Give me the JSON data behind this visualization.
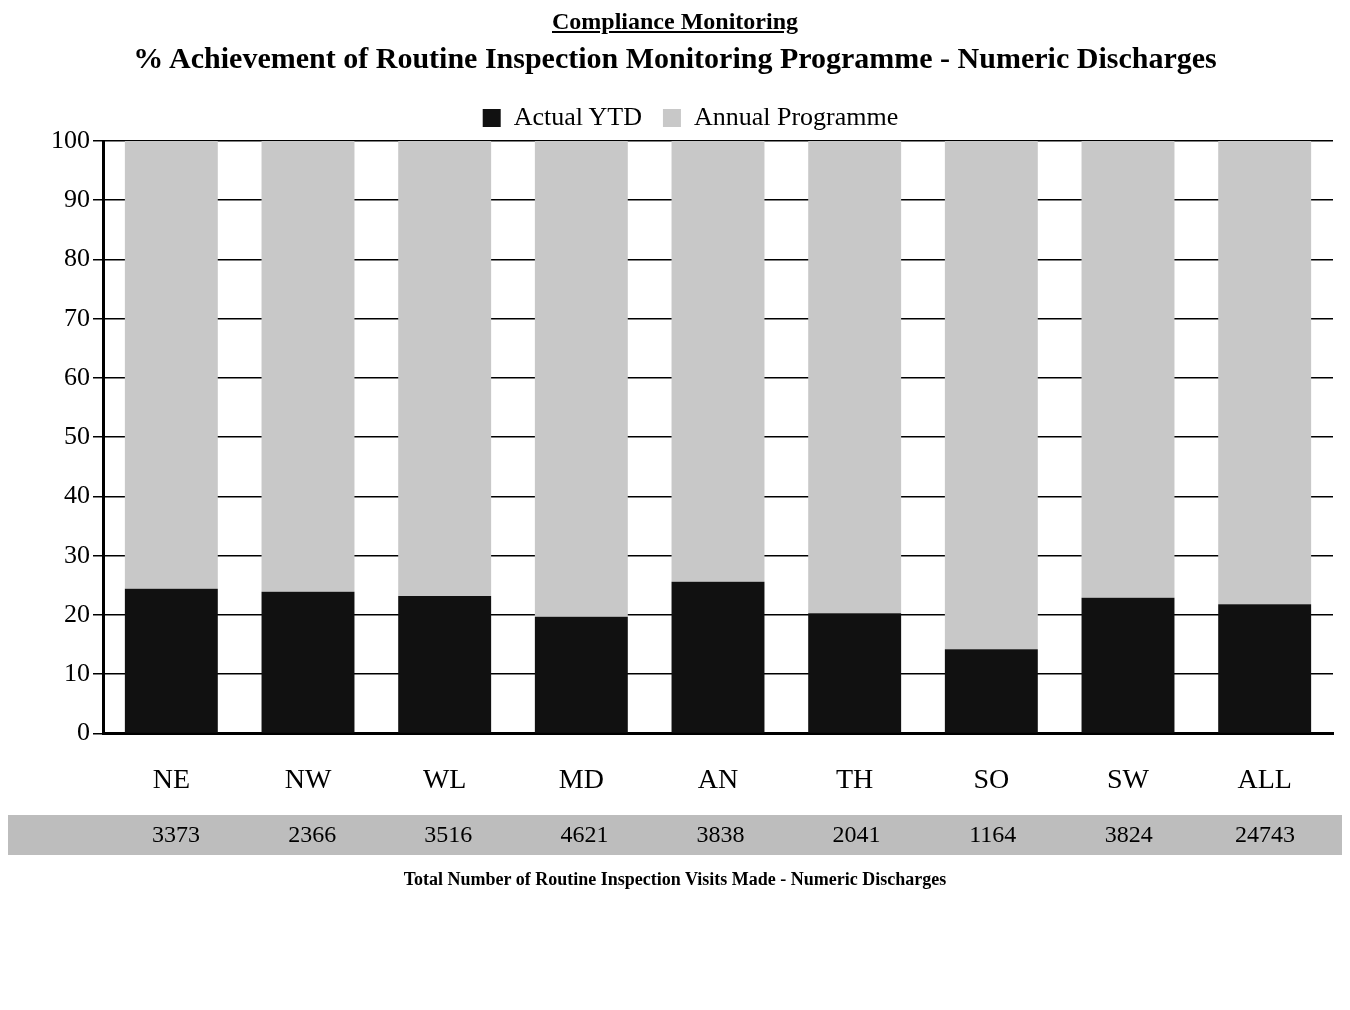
{
  "chart_data": {
    "type": "bar",
    "title": "Compliance Monitoring",
    "subtitle": "% Achievement of Routine Inspection Monitoring Programme - Numeric Discharges",
    "categories": [
      "NE",
      "NW",
      "WL",
      "MD",
      "AN",
      "TH",
      "SO",
      "SW",
      "ALL"
    ],
    "stacked": true,
    "series": [
      {
        "name": "Actual YTD",
        "color": "#111111",
        "values": [
          24.4,
          23.9,
          23.2,
          19.7,
          25.6,
          20.3,
          14.2,
          22.9,
          21.8
        ]
      },
      {
        "name": "Annual Programme",
        "color": "#c8c8c8",
        "values": [
          75.6,
          76.1,
          76.8,
          80.3,
          74.4,
          79.7,
          85.8,
          77.1,
          78.2
        ]
      }
    ],
    "ylim": [
      0,
      100
    ],
    "yticks": [
      0,
      10,
      20,
      30,
      40,
      50,
      60,
      70,
      80,
      90,
      100
    ],
    "grid": "y",
    "legend": "top",
    "annotations": [
      "3373",
      "2366",
      "3516",
      "4621",
      "3838",
      "2041",
      "1164",
      "3824",
      "24743",
      "Total Number of Routine Inspection Visits Made - Numeric Discharges"
    ]
  }
}
